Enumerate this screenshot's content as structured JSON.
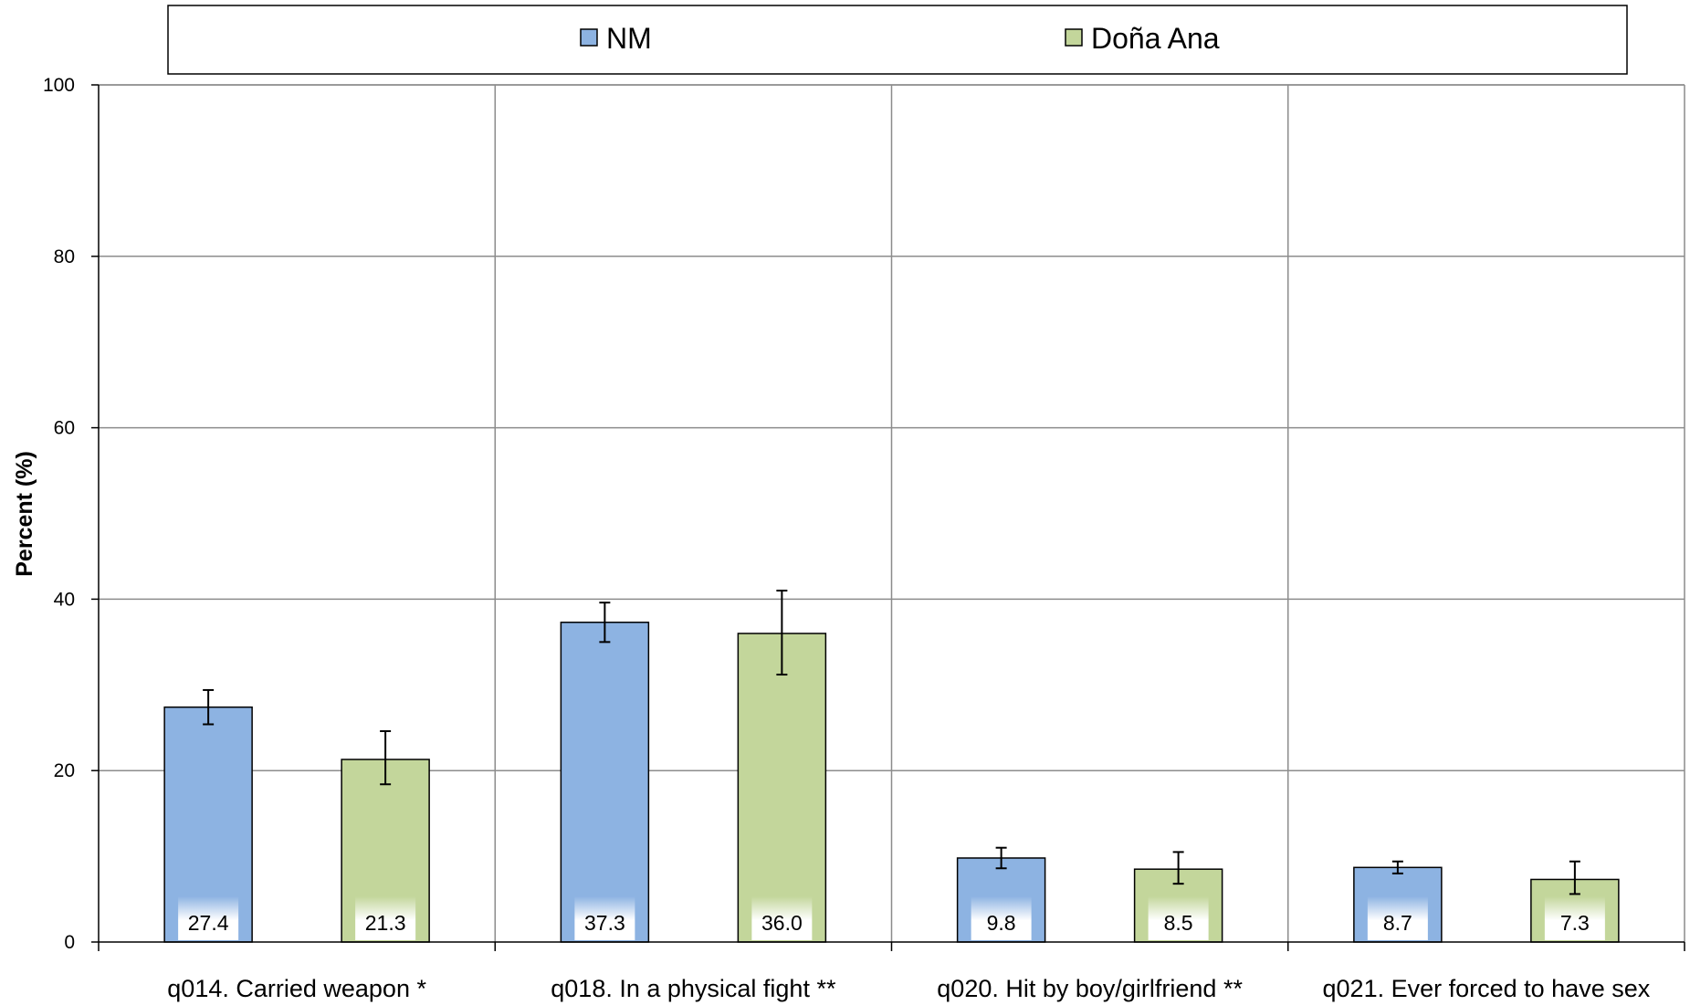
{
  "chart_data": {
    "type": "bar",
    "title": "",
    "xlabel": "",
    "ylabel": "Percent (%)",
    "ylim": [
      0,
      100
    ],
    "yticks": [
      0,
      20,
      40,
      60,
      80,
      100
    ],
    "grid": true,
    "legend_position": "top",
    "categories": [
      "q014. Carried weapon *",
      "q018. In a physical fight **",
      "q020. Hit by boy/girlfriend **",
      "q021. Ever forced to have sex"
    ],
    "series": [
      {
        "name": "NM",
        "color": "#8DB3E2",
        "values": [
          27.4,
          37.3,
          9.8,
          8.7
        ],
        "ci_low": [
          25.4,
          35.0,
          8.6,
          8.0
        ],
        "ci_high": [
          29.4,
          39.6,
          11.0,
          9.4
        ]
      },
      {
        "name": "Doña Ana",
        "color": "#C3D69B",
        "values": [
          21.3,
          36.0,
          8.5,
          7.3
        ],
        "ci_low": [
          18.4,
          31.2,
          6.8,
          5.6
        ],
        "ci_high": [
          24.6,
          41.0,
          10.5,
          9.4
        ]
      }
    ],
    "data_labels": [
      [
        "27.4",
        "37.3",
        "9.8",
        "8.7"
      ],
      [
        "21.3",
        "36.0",
        "8.5",
        "7.3"
      ]
    ]
  }
}
